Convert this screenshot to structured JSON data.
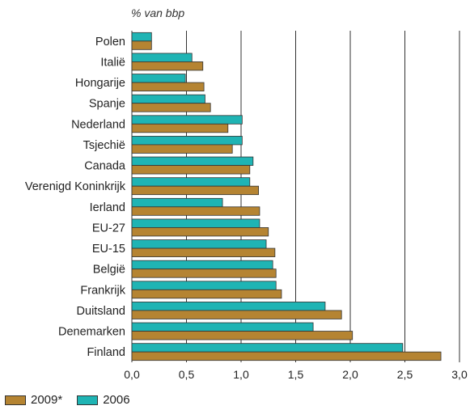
{
  "chart_data": {
    "type": "bar",
    "orientation": "horizontal",
    "unit_label": "% van bbp",
    "categories": [
      "Polen",
      "Italië",
      "Hongarije",
      "Spanje",
      "Nederland",
      "Tsjechië",
      "Canada",
      "Verenigd Koninkrijk",
      "Ierland",
      "EU-27",
      "EU-15",
      "België",
      "Frankrijk",
      "Duitsland",
      "Denemarken",
      "Finland"
    ],
    "series": [
      {
        "name": "2009*",
        "color": "#b58432",
        "values": [
          0.18,
          0.65,
          0.66,
          0.72,
          0.88,
          0.92,
          1.08,
          1.16,
          1.17,
          1.25,
          1.31,
          1.32,
          1.37,
          1.92,
          2.02,
          2.83
        ]
      },
      {
        "name": "2006",
        "color": "#1fb4b4",
        "values": [
          0.18,
          0.55,
          0.49,
          0.67,
          1.01,
          1.01,
          1.11,
          1.08,
          0.83,
          1.17,
          1.23,
          1.29,
          1.32,
          1.77,
          1.66,
          2.48
        ]
      }
    ],
    "xlim": [
      0,
      3.0
    ],
    "xticks": [
      "0,0",
      "0,5",
      "1,0",
      "1,5",
      "2,0",
      "2,5",
      "3,0"
    ],
    "grid": true,
    "legend_position": "bottom-left"
  }
}
